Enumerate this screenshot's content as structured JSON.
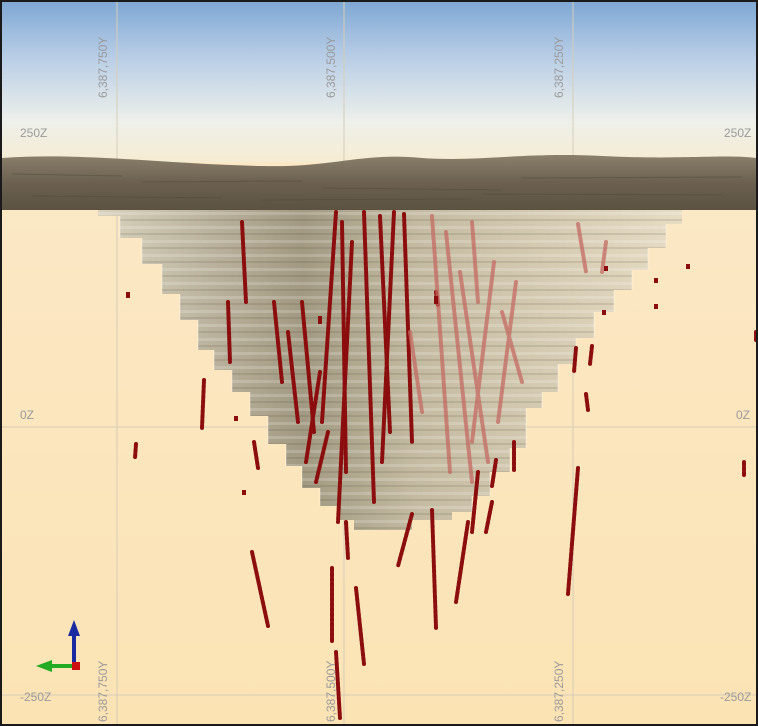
{
  "viewer": {
    "grid_labels": {
      "z_levels": [
        "250Z",
        "0Z",
        "-250Z"
      ],
      "y_levels": [
        "6,387,750Y",
        "6,387,500Y",
        "6,387,250Y"
      ]
    },
    "colors": {
      "sky_top": "#7fa8d4",
      "sky_horizon": "#f5ecd3",
      "ground_background": "#fbe7bf",
      "terrain": "#6e624f",
      "pit_shell": "#cfc6ae",
      "drillhole": "#8b0d0d",
      "grid_line": "#d6cdb8",
      "axis_x_red": "#cc1111",
      "axis_y_green": "#22aa22",
      "axis_z_blue": "#1a2aa0"
    },
    "orientation_icon": "xyz-axis-triad-icon"
  }
}
